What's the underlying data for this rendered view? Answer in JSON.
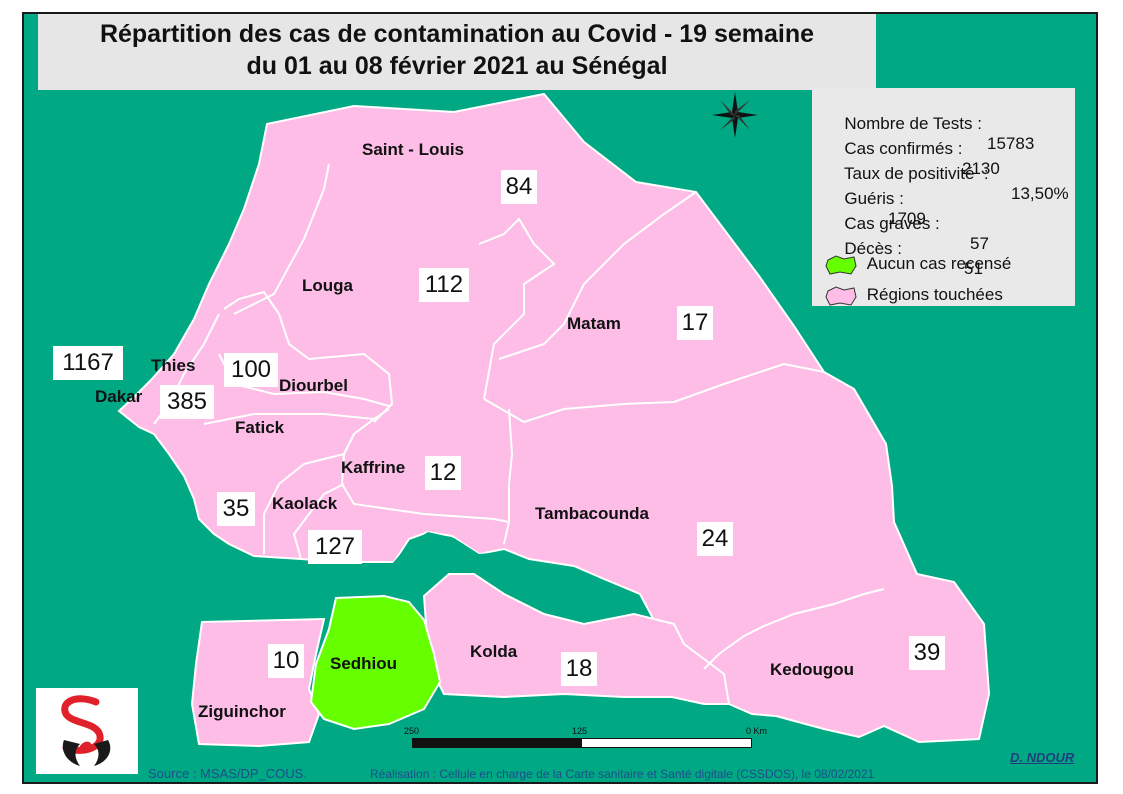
{
  "title": {
    "line1": "Répartition des cas de contamination au Covid - 19 semaine",
    "line2": "du  01 au 08  février 2021 au Sénégal"
  },
  "stats": [
    {
      "label": "Nombre de Tests :",
      "value": "15783"
    },
    {
      "label": "Cas confirmés :",
      "value": "2130"
    },
    {
      "label": "Taux de positivité  :",
      "value": "13,50%"
    },
    {
      "label": "Guéris :",
      "value": "1709"
    },
    {
      "label": "Cas graves :",
      "value": "57"
    },
    {
      "label": "Décès :",
      "value": "51"
    }
  ],
  "legend": {
    "none_label": "Aucun cas recensé",
    "none_color": "#66ff00",
    "touched_label": "Régions touchées",
    "touched_color": "#fdbde6"
  },
  "regions": {
    "saint_louis": {
      "name": "Saint - Louis",
      "cases": "84"
    },
    "louga": {
      "name": "Louga",
      "cases": "112"
    },
    "matam": {
      "name": "Matam",
      "cases": "17"
    },
    "dakar": {
      "name": "Dakar",
      "cases": "1167"
    },
    "thies": {
      "name": "Thies",
      "cases": "385"
    },
    "diourbel": {
      "name": "Diourbel",
      "cases": "100"
    },
    "fatick": {
      "name": "Fatick",
      "cases": "35"
    },
    "kaffrine": {
      "name": "Kaffrine",
      "cases": "12"
    },
    "kaolack": {
      "name": "Kaolack",
      "cases": "127"
    },
    "tambacounda": {
      "name": "Tambacounda",
      "cases": "24"
    },
    "ziguinchor": {
      "name": "Ziguinchor",
      "cases": "10"
    },
    "sedhiou": {
      "name": "Sedhiou",
      "cases": "0"
    },
    "kolda": {
      "name": "Kolda",
      "cases": "18"
    },
    "kedougou": {
      "name": "Kedougou",
      "cases": "39"
    }
  },
  "scale_bar": {
    "labels": [
      "250",
      "125",
      "0 Km"
    ]
  },
  "footer": {
    "source": "Source : MSAS/DP_COUS.",
    "credit": "Réalisation : Cellule en charge de la Carte sanitaire et Santé digitale (CSSDOS), le 08/02/2021",
    "author": "D. NDOUR"
  },
  "colors": {
    "sea": "#00a884",
    "region": "#fdbde6",
    "sedhiou": "#66ff00"
  }
}
